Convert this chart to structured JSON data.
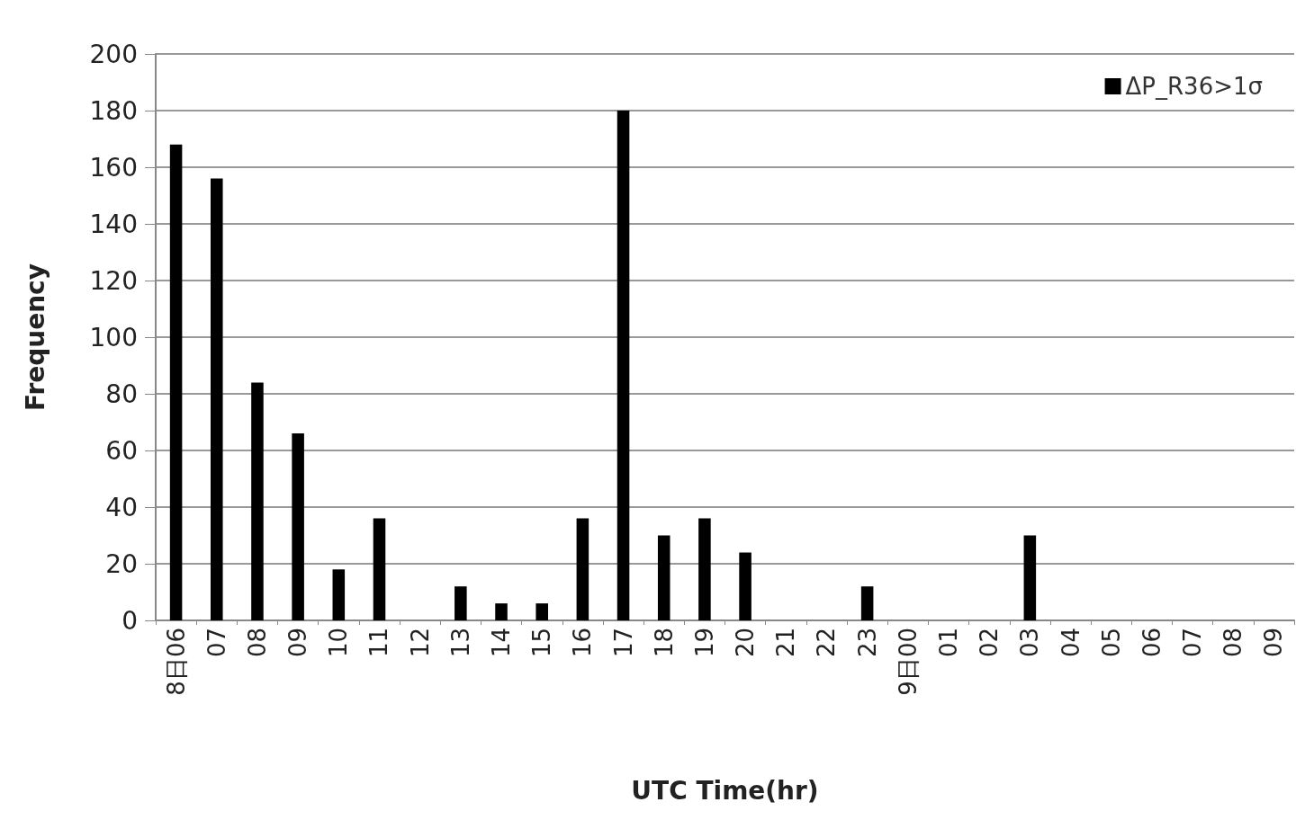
{
  "chart_data": {
    "type": "bar",
    "xlabel": "UTC Time(hr)",
    "ylabel": "Frequency",
    "categories": [
      "8日06",
      "07",
      "08",
      "09",
      "10",
      "11",
      "12",
      "13",
      "14",
      "15",
      "16",
      "17",
      "18",
      "19",
      "20",
      "21",
      "22",
      "23",
      "9日00",
      "01",
      "02",
      "03",
      "04",
      "05",
      "06",
      "07",
      "08",
      "09"
    ],
    "series": [
      {
        "name": "ΔP_R36>1σ",
        "color": "#000000",
        "values": [
          168,
          156,
          84,
          66,
          18,
          36,
          0,
          12,
          6,
          6,
          36,
          180,
          30,
          36,
          24,
          0,
          0,
          12,
          0,
          0,
          0,
          30,
          0,
          0,
          0,
          0,
          0,
          0
        ]
      }
    ],
    "ylim": [
      0,
      200
    ],
    "yticks": [
      0,
      20,
      40,
      60,
      80,
      100,
      120,
      140,
      160,
      180,
      200
    ],
    "grid": "y",
    "legend": "top right"
  }
}
